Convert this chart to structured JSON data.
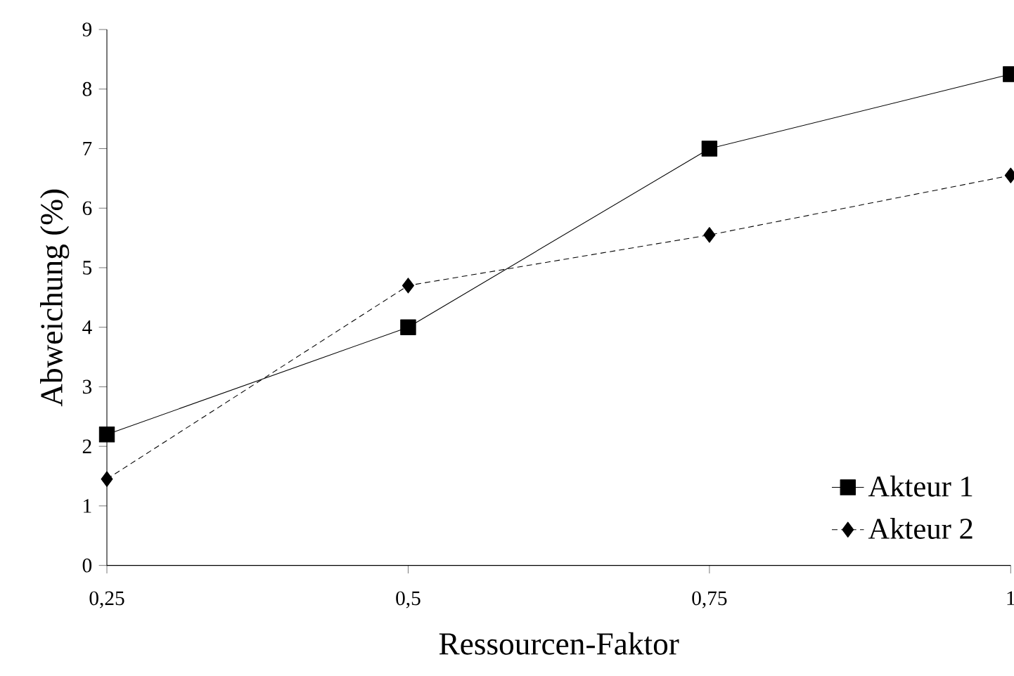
{
  "chart_data": {
    "type": "line",
    "xlabel": "Ressourcen-Faktor",
    "ylabel": "Abweichung (%)",
    "x": [
      0.25,
      0.5,
      0.75,
      1
    ],
    "series": [
      {
        "name": "Akteur 1",
        "color": "#000000",
        "marker": "square",
        "line_style": "solid",
        "values": [
          2.2,
          4.0,
          7.0,
          8.25
        ]
      },
      {
        "name": "Akteur 2",
        "color": "#000000",
        "marker": "diamond",
        "line_style": "dashed",
        "values": [
          1.45,
          4.7,
          5.55,
          6.55
        ]
      }
    ],
    "xlim": [
      0.25,
      1
    ],
    "ylim": [
      0,
      9
    ],
    "xticks": [
      {
        "value": 0.25,
        "label": "0,25"
      },
      {
        "value": 0.5,
        "label": "0,5"
      },
      {
        "value": 0.75,
        "label": "0,75"
      },
      1
    ],
    "yticks": [
      0,
      1,
      2,
      3,
      4,
      5,
      6,
      7,
      8,
      9
    ],
    "grid": false,
    "legend": "bottom right"
  }
}
